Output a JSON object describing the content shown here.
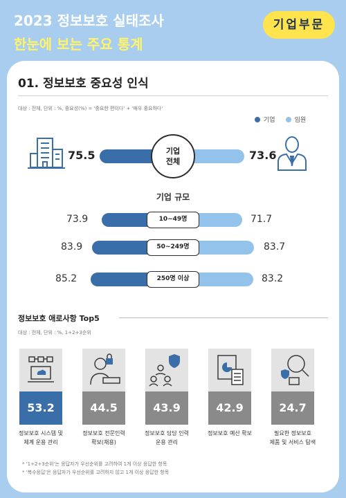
{
  "header": {
    "line1": "2023 정보보호 실태조사",
    "line2": "한눈에 보는 주요 통계",
    "badge": "기업부문"
  },
  "section": {
    "title": "01. 정보보호 중요성 인식",
    "note": "대상 : 전체, 단위 : %, 중요성(%) = '중요한 편이다' + '매우 중요하다'"
  },
  "legend": [
    {
      "label": "기업",
      "color": "#3a6ea8"
    },
    {
      "label": "임원",
      "color": "#93c2ea"
    }
  ],
  "center_label": [
    "기업",
    "전체"
  ],
  "size_title": "기업 규모",
  "icons": {
    "left": "office-building-icon",
    "right": "executive-person-icon"
  },
  "chart_data": [
    {
      "type": "bar",
      "subtype": "back-to-back horizontal bar",
      "categories": [
        "기업 전체",
        "10~49명",
        "50~249명",
        "250명 이상"
      ],
      "series": [
        {
          "name": "기업",
          "color": "#3a6ea8",
          "values": [
            75.5,
            73.9,
            83.9,
            85.2
          ]
        },
        {
          "name": "임원",
          "color": "#93c2ea",
          "values": [
            73.6,
            71.7,
            83.7,
            83.2
          ]
        }
      ]
    },
    {
      "type": "bar",
      "title": "정보보호 애로사항 Top5",
      "note": "대상 : 전체, 단위 : %, 1+2+3순위",
      "categories": [
        "정보보호 시스템 및 체계 운용 관리",
        "정보보호 전문인력 확보(채용)",
        "정보보호 담당 인력 운용 관리",
        "정보보호 예산 확보",
        "필요한 정보보호 제품 및 서비스 탐색"
      ],
      "values": [
        53.2,
        44.5,
        43.9,
        42.9,
        24.7
      ],
      "highlight_color": "#3a6ea8",
      "base_color": "#8a8a8a"
    }
  ],
  "threats": {
    "icons": [
      "laptop-network-icon",
      "recruiter-person-icon",
      "team-shield-icon",
      "budget-calculator-icon",
      "magnifier-search-icon"
    ],
    "labels": [
      [
        "정보보호 시스템 및",
        "체계 운용 관리"
      ],
      [
        "정보보호 전문인력",
        "확보(채용)"
      ],
      [
        "정보보호 담당 인력",
        "운용 관리"
      ],
      [
        "정보보호 예산 확보"
      ],
      [
        "필요한 정보보호",
        "제품 및 서비스 탐색"
      ]
    ]
  },
  "footnotes": [
    "* '1+2+3순위'는 응답자가 우선순위를 고려하여 1개 이상 응답한 항목",
    "* '복수응답'은 응답자가 우선순위를 고려하지 않고 1개 이상 응답한 항목"
  ]
}
